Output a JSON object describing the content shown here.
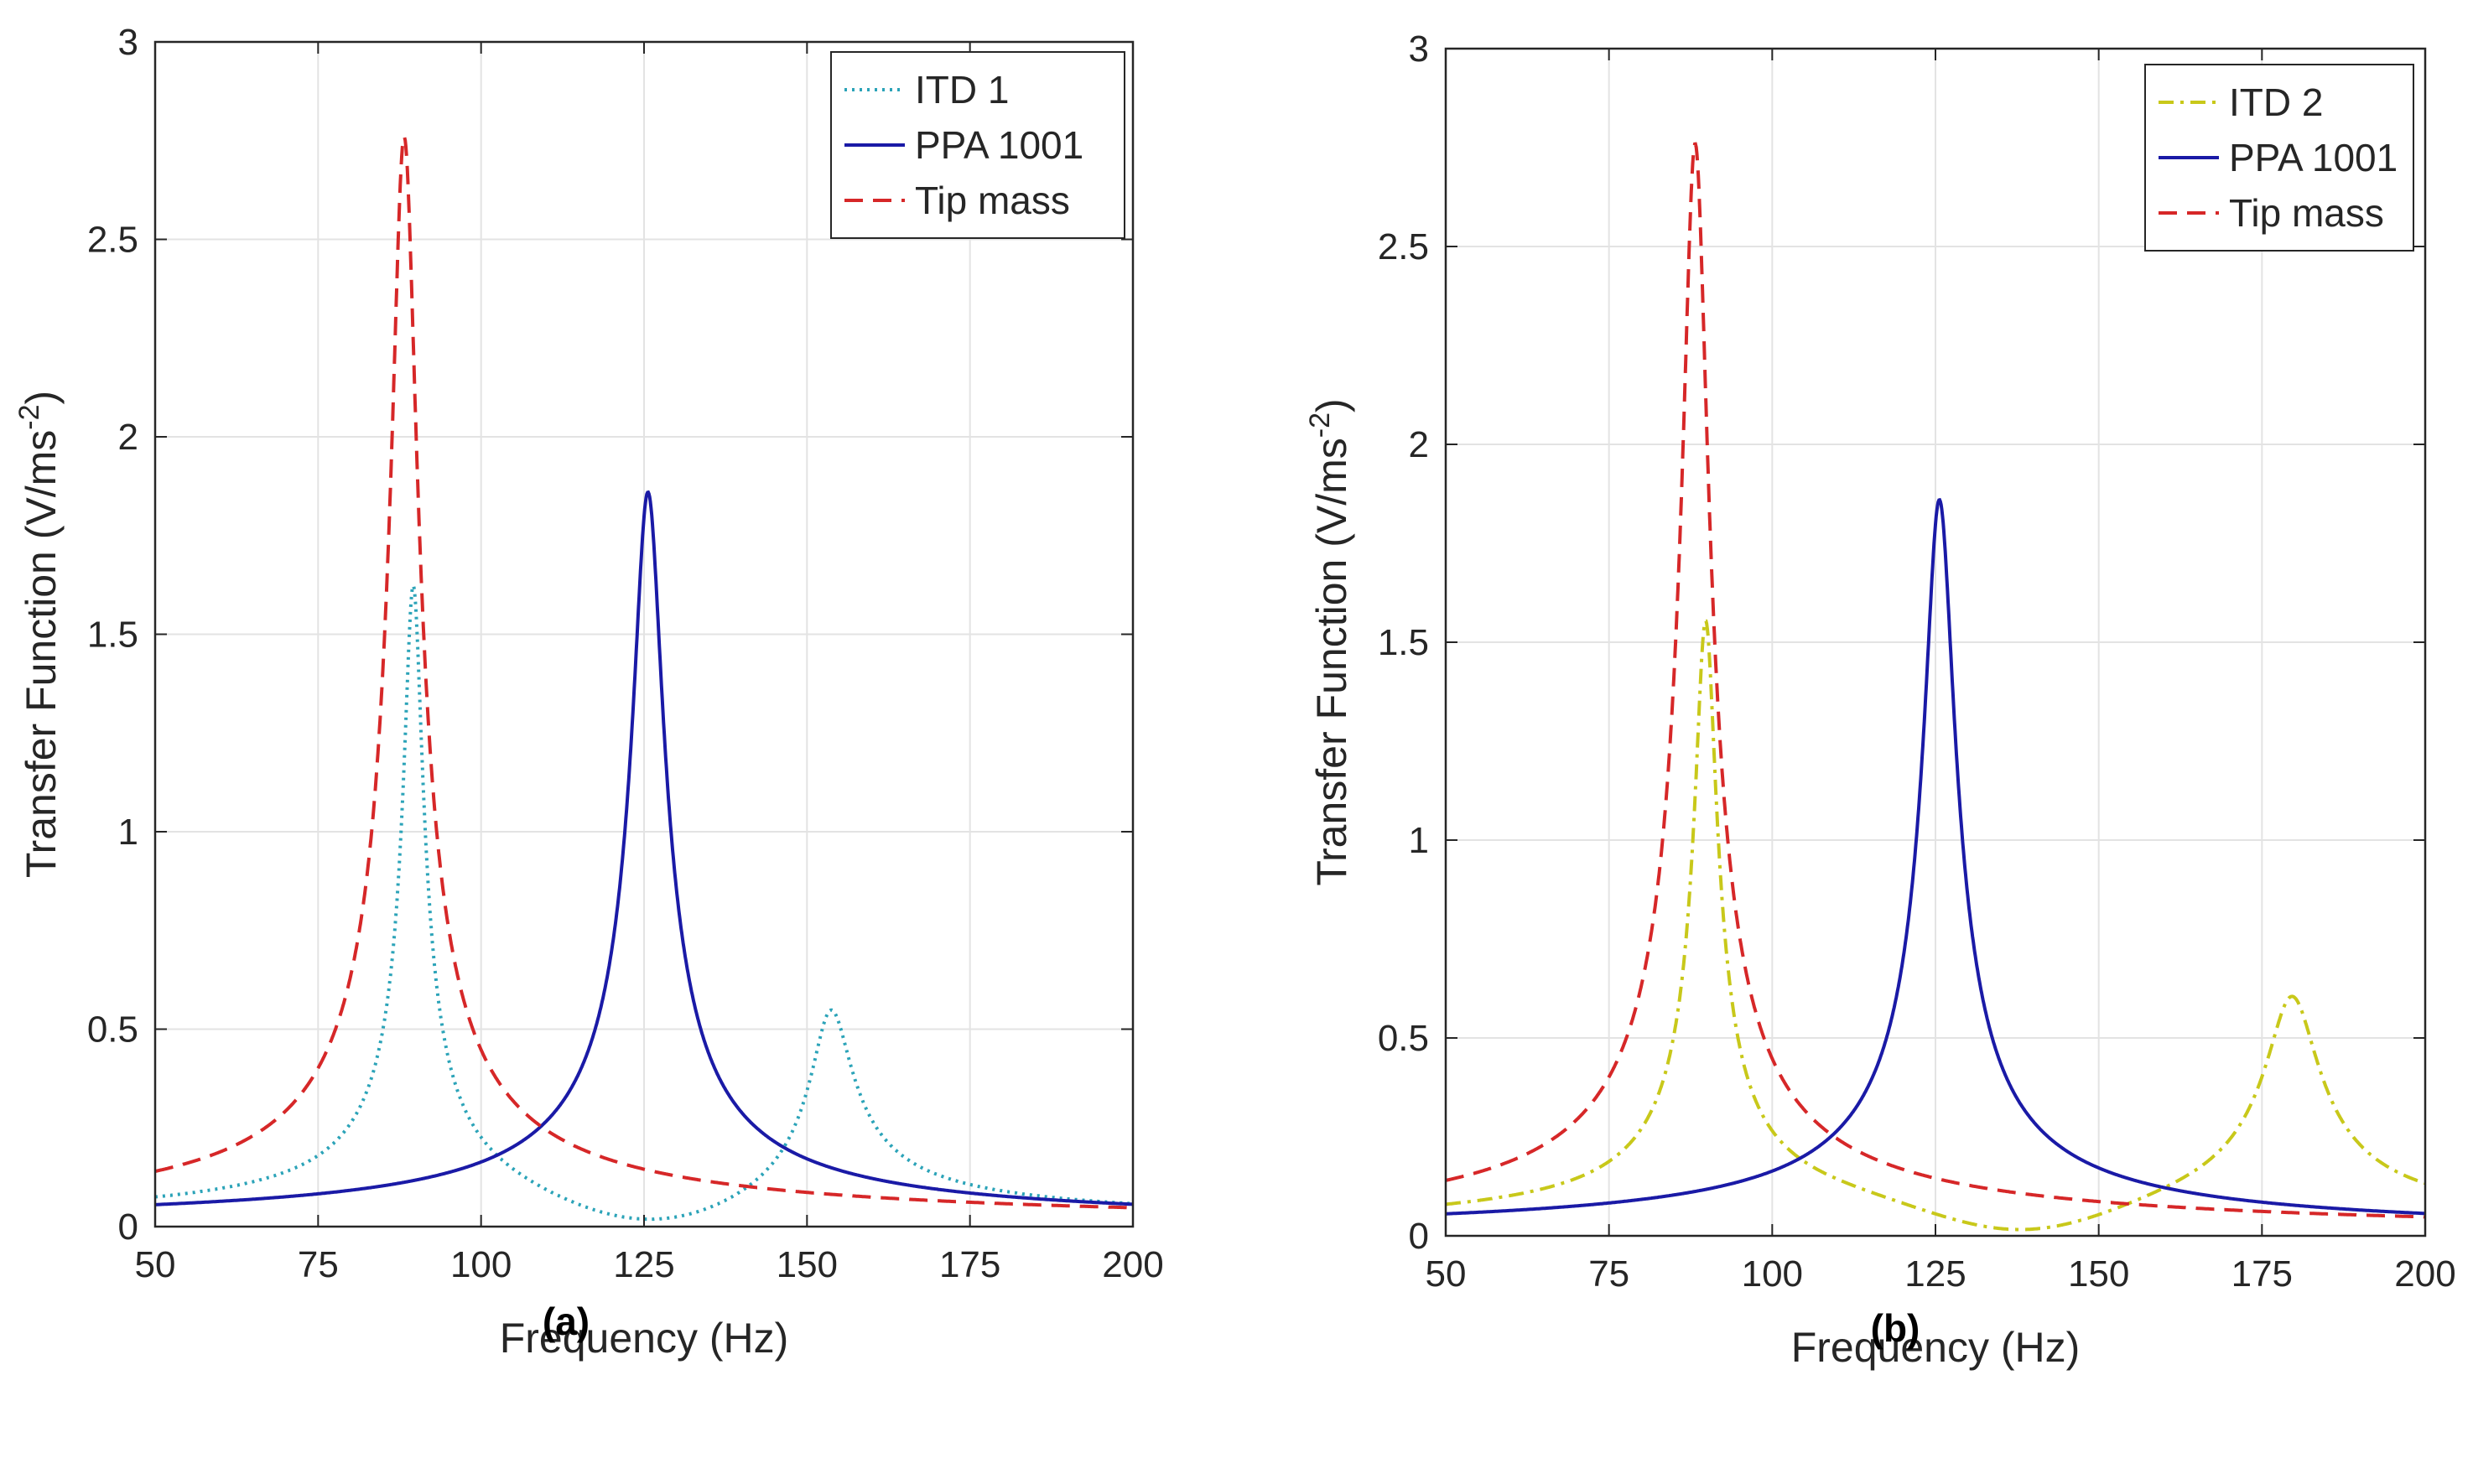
{
  "chart_data": [
    {
      "type": "line",
      "panel_label": "(a)",
      "xlabel": "Frequency (Hz)",
      "ylabel": "Transfer Function (V/ms",
      "ylabel_superscript": "-2",
      "ylabel_suffix": ")",
      "xlim": [
        50,
        200
      ],
      "ylim": [
        0,
        3
      ],
      "xticks": [
        50,
        75,
        100,
        125,
        150,
        175,
        200
      ],
      "yticks": [
        0,
        0.5,
        1,
        1.5,
        2,
        2.5,
        3
      ],
      "ytick_labels": [
        "0",
        "0.5",
        "1",
        "1.5",
        "2",
        "2.5",
        "3"
      ],
      "grid": true,
      "legend_position": "top-right",
      "series": [
        {
          "name": "ITD 1",
          "style": "dotted",
          "color": "#2ba3b8",
          "resonances": [
            {
              "f": 89.6,
              "peak": 1.62,
              "q": 0.016
            },
            {
              "f": 153.6,
              "peak": 0.56,
              "q": 0.02
            }
          ],
          "notch": {
            "f": 126,
            "depth": 0.0
          },
          "x": [
            50,
            60,
            70,
            80,
            85,
            88,
            89.6,
            91,
            95,
            100,
            110,
            120,
            126,
            135,
            145,
            150,
            153.6,
            157,
            165,
            180,
            200
          ],
          "y": [
            0.05,
            0.06,
            0.09,
            0.18,
            0.35,
            0.85,
            1.62,
            0.95,
            0.3,
            0.15,
            0.05,
            0.015,
            0.005,
            0.03,
            0.15,
            0.32,
            0.56,
            0.3,
            0.1,
            0.04,
            0.02
          ]
        },
        {
          "name": "PPA 1001",
          "style": "solid",
          "color": "#1a1aa6",
          "resonances": [
            {
              "f": 125.6,
              "peak": 1.86,
              "q": 0.018
            }
          ],
          "x": [
            50,
            70,
            90,
            100,
            110,
            115,
            120,
            123,
            125.6,
            128,
            131,
            135,
            140,
            150,
            170,
            200
          ],
          "y": [
            0.04,
            0.05,
            0.06,
            0.08,
            0.15,
            0.25,
            0.55,
            1.0,
            1.86,
            1.0,
            0.45,
            0.22,
            0.14,
            0.08,
            0.04,
            0.02
          ]
        },
        {
          "name": "Tip mass",
          "style": "dashed",
          "color": "#d62728",
          "resonances": [
            {
              "f": 88.2,
              "peak": 2.76,
              "q": 0.022
            }
          ],
          "x": [
            50,
            60,
            70,
            78,
            83,
            86,
            88.2,
            90,
            93,
            100,
            110,
            125,
            150,
            200
          ],
          "y": [
            0.07,
            0.1,
            0.16,
            0.3,
            0.6,
            1.2,
            2.76,
            1.3,
            0.6,
            0.25,
            0.12,
            0.06,
            0.04,
            0.02
          ]
        }
      ]
    },
    {
      "type": "line",
      "panel_label": "(b)",
      "xlabel": "Frequency (Hz)",
      "ylabel": "Transfer Function (V/ms",
      "ylabel_superscript": "-2",
      "ylabel_suffix": ")",
      "xlim": [
        50,
        200
      ],
      "ylim": [
        0,
        3
      ],
      "xticks": [
        50,
        75,
        100,
        125,
        150,
        175,
        200
      ],
      "yticks": [
        0,
        0.5,
        1,
        1.5,
        2,
        2.5,
        3
      ],
      "ytick_labels": [
        "0",
        "0.5",
        "1",
        "1.5",
        "2",
        "2.5",
        "3"
      ],
      "grid": true,
      "legend_position": "top-right",
      "series": [
        {
          "name": "ITD 2",
          "style": "dashdot",
          "color": "#c8c81a",
          "resonances": [
            {
              "f": 89.8,
              "peak": 1.53,
              "q": 0.018
            },
            {
              "f": 179.6,
              "peak": 0.58,
              "q": 0.022
            }
          ],
          "notch": {
            "f": 138,
            "depth": 0.0
          },
          "x": [
            50,
            60,
            70,
            80,
            85,
            88,
            89.8,
            91,
            95,
            100,
            110,
            125,
            138,
            150,
            165,
            172,
            179.6,
            185,
            200
          ],
          "y": [
            0.05,
            0.06,
            0.09,
            0.2,
            0.45,
            0.95,
            1.53,
            1.0,
            0.35,
            0.15,
            0.05,
            0.015,
            0.005,
            0.02,
            0.08,
            0.2,
            0.58,
            0.25,
            0.05
          ]
        },
        {
          "name": "PPA 1001",
          "style": "solid",
          "color": "#1a1aa6",
          "resonances": [
            {
              "f": 125.6,
              "peak": 1.86,
              "q": 0.018
            }
          ],
          "x": [
            50,
            70,
            90,
            100,
            110,
            115,
            120,
            123,
            125.6,
            128,
            131,
            135,
            140,
            150,
            170,
            200
          ],
          "y": [
            0.04,
            0.05,
            0.06,
            0.08,
            0.15,
            0.25,
            0.55,
            1.0,
            1.86,
            1.0,
            0.45,
            0.22,
            0.14,
            0.08,
            0.04,
            0.02
          ]
        },
        {
          "name": "Tip mass",
          "style": "dashed",
          "color": "#d62728",
          "resonances": [
            {
              "f": 88.2,
              "peak": 2.76,
              "q": 0.022
            }
          ],
          "x": [
            50,
            60,
            70,
            78,
            83,
            86,
            88.2,
            90,
            93,
            100,
            110,
            125,
            150,
            200
          ],
          "y": [
            0.07,
            0.1,
            0.16,
            0.3,
            0.6,
            1.2,
            2.76,
            1.3,
            0.6,
            0.25,
            0.12,
            0.06,
            0.04,
            0.02
          ]
        }
      ]
    }
  ]
}
